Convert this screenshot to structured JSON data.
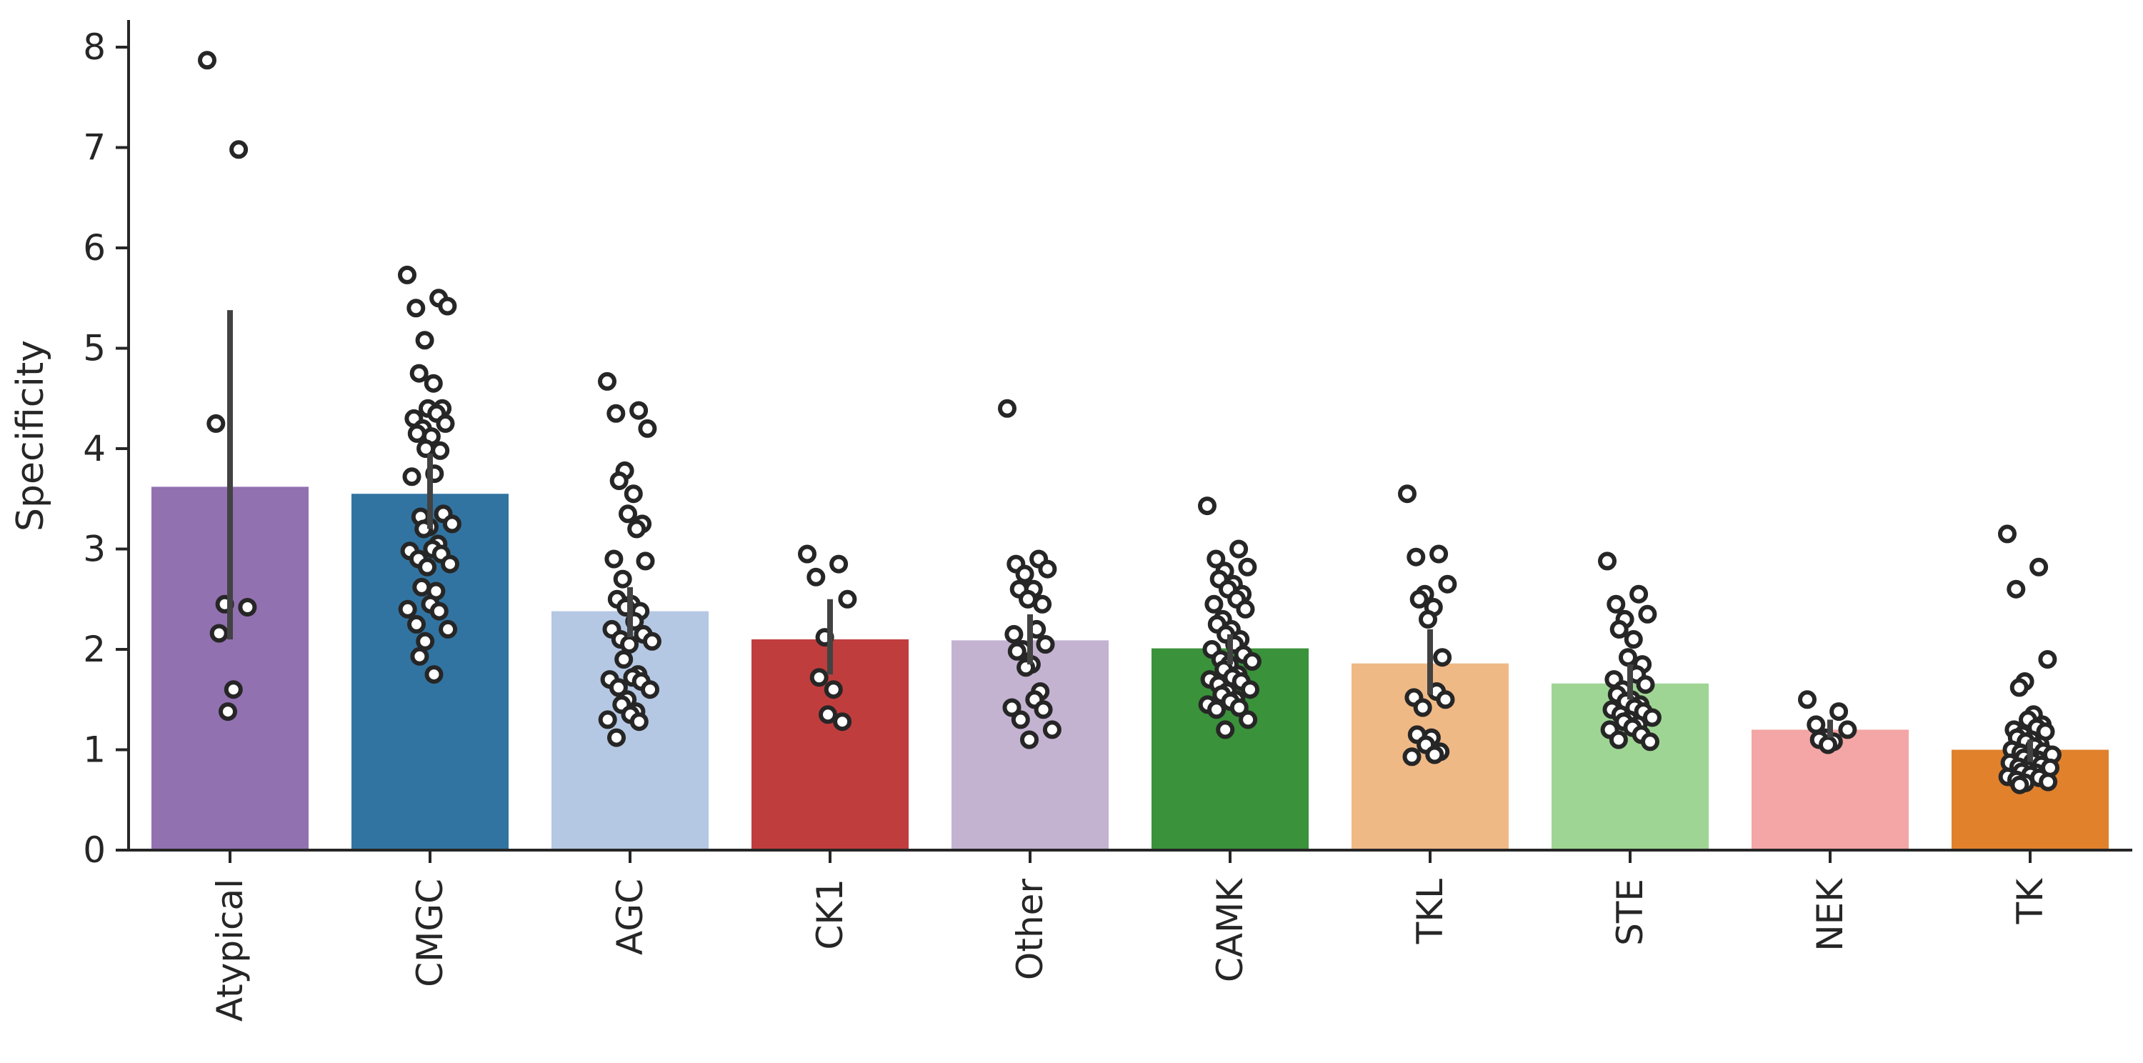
{
  "chart_data": {
    "type": "bar",
    "ylabel": "Specificity",
    "xlabel": "",
    "ylim": [
      0,
      8.3
    ],
    "yticks": [
      0,
      1,
      2,
      3,
      4,
      5,
      6,
      7,
      8
    ],
    "grid": false,
    "legend": "none",
    "categories": [
      "Atypical",
      "CMGC",
      "AGC",
      "CK1",
      "Other",
      "CAMK",
      "TKL",
      "STE",
      "NEK",
      "TK"
    ],
    "colors": [
      "#9271b0",
      "#3274a1",
      "#b4c7e3",
      "#c03d3e",
      "#c3b3d1",
      "#3a923a",
      "#efb986",
      "#9fd594",
      "#f3a6a5",
      "#e1812c"
    ],
    "values": [
      3.62,
      3.55,
      2.38,
      2.1,
      2.09,
      2.01,
      1.86,
      1.66,
      1.2,
      1.0
    ],
    "error_bars": [
      [
        2.1,
        5.38
      ],
      [
        3.2,
        3.95
      ],
      [
        2.12,
        2.62
      ],
      [
        1.75,
        2.5
      ],
      [
        1.85,
        2.35
      ],
      [
        1.85,
        2.15
      ],
      [
        1.55,
        2.2
      ],
      [
        1.5,
        1.85
      ],
      [
        1.12,
        1.3
      ],
      [
        0.88,
        1.1
      ]
    ],
    "points": [
      [
        7.87,
        6.98,
        4.25,
        2.42,
        2.45,
        2.16,
        1.6,
        1.38
      ],
      [
        5.73,
        5.5,
        5.4,
        5.42,
        5.08,
        4.75,
        4.65,
        4.4,
        4.4,
        4.35,
        4.3,
        4.25,
        4.2,
        4.15,
        4.12,
        4.0,
        3.98,
        3.75,
        3.72,
        3.35,
        3.32,
        3.25,
        3.22,
        3.2,
        3.05,
        3.0,
        2.98,
        2.95,
        2.9,
        2.85,
        2.82,
        2.62,
        2.58,
        2.45,
        2.4,
        2.38,
        2.25,
        2.2,
        2.08,
        1.93,
        1.75
      ],
      [
        4.67,
        4.38,
        4.35,
        4.2,
        3.78,
        3.68,
        3.55,
        3.35,
        3.25,
        3.2,
        2.9,
        2.88,
        2.7,
        2.5,
        2.45,
        2.42,
        2.38,
        2.28,
        2.2,
        2.15,
        2.1,
        2.08,
        2.05,
        1.9,
        1.75,
        1.72,
        1.7,
        1.68,
        1.62,
        1.6,
        1.5,
        1.45,
        1.38,
        1.35,
        1.3,
        1.28,
        1.12
      ],
      [
        2.95,
        2.85,
        2.72,
        2.5,
        2.12,
        1.72,
        1.6,
        1.35,
        1.28
      ],
      [
        4.4,
        2.9,
        2.85,
        2.8,
        2.75,
        2.6,
        2.6,
        2.5,
        2.45,
        2.2,
        2.15,
        2.05,
        2.0,
        1.98,
        1.85,
        1.82,
        1.58,
        1.5,
        1.42,
        1.4,
        1.3,
        1.2,
        1.1
      ],
      [
        3.43,
        3.0,
        2.9,
        2.82,
        2.78,
        2.7,
        2.65,
        2.6,
        2.55,
        2.5,
        2.45,
        2.4,
        2.3,
        2.25,
        2.2,
        2.15,
        2.1,
        2.05,
        2.0,
        1.95,
        1.9,
        1.88,
        1.85,
        1.8,
        1.75,
        1.72,
        1.7,
        1.68,
        1.65,
        1.6,
        1.58,
        1.55,
        1.5,
        1.48,
        1.45,
        1.42,
        1.4,
        1.3,
        1.2
      ],
      [
        3.55,
        2.95,
        2.92,
        2.65,
        2.55,
        2.5,
        2.42,
        2.3,
        1.92,
        1.58,
        1.52,
        1.5,
        1.42,
        1.15,
        1.12,
        1.05,
        0.98,
        0.95,
        0.93
      ],
      [
        2.88,
        2.55,
        2.45,
        2.35,
        2.3,
        2.2,
        2.1,
        1.92,
        1.85,
        1.75,
        1.7,
        1.65,
        1.6,
        1.55,
        1.5,
        1.48,
        1.45,
        1.42,
        1.4,
        1.38,
        1.35,
        1.32,
        1.3,
        1.28,
        1.25,
        1.22,
        1.2,
        1.15,
        1.1,
        1.08
      ],
      [
        1.5,
        1.38,
        1.25,
        1.2,
        1.12,
        1.1,
        1.08,
        1.05
      ],
      [
        3.15,
        2.82,
        2.6,
        1.9,
        1.68,
        1.62,
        1.35,
        1.3,
        1.25,
        1.22,
        1.2,
        1.18,
        1.15,
        1.12,
        1.1,
        1.08,
        1.05,
        1.03,
        1.0,
        0.98,
        0.97,
        0.95,
        0.93,
        0.92,
        0.9,
        0.88,
        0.87,
        0.85,
        0.83,
        0.82,
        0.8,
        0.78,
        0.77,
        0.75,
        0.73,
        0.72,
        0.7,
        0.68,
        0.67,
        0.65
      ]
    ]
  }
}
